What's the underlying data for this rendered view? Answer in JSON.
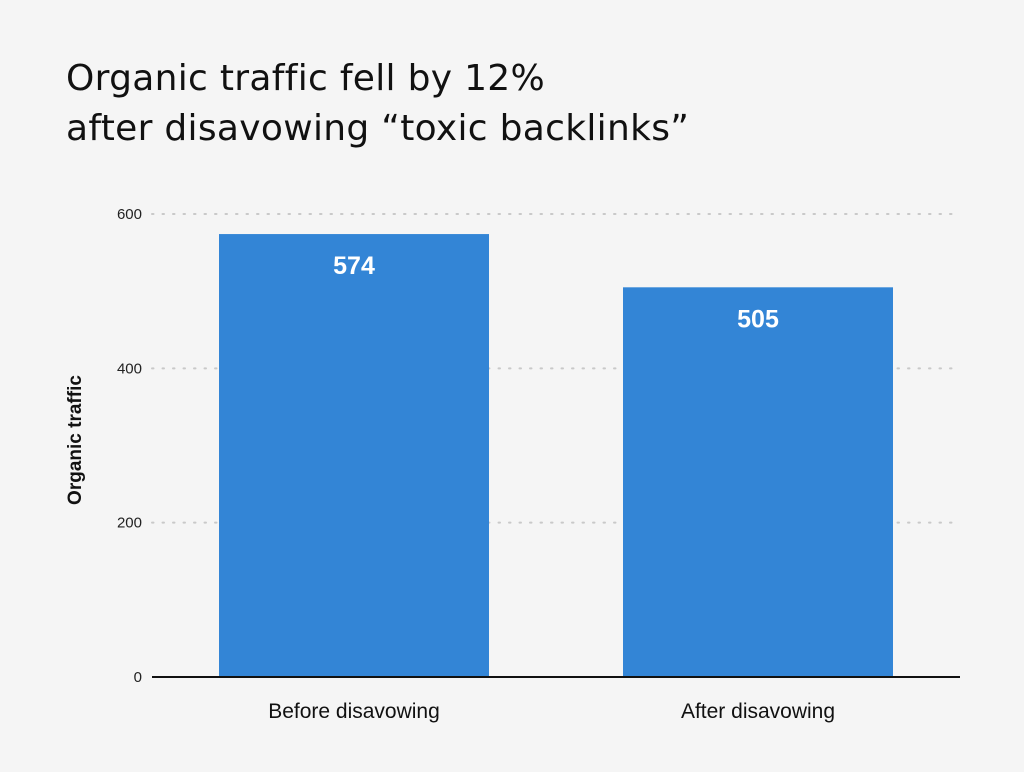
{
  "chart_data": {
    "type": "bar",
    "title": "Organic traffic fell by 12%",
    "subtitle": "after disavowing “toxic backlinks”",
    "ylabel": "Organic traffic",
    "xlabel": "",
    "categories": [
      "Before disavowing",
      "After disavowing"
    ],
    "values": [
      574,
      505
    ],
    "yticks": [
      0,
      200,
      400,
      600
    ],
    "ylim": [
      0,
      600
    ],
    "grid": true,
    "legend": "none",
    "bar_color": "#3385d6",
    "label_color": "#ffffff"
  }
}
